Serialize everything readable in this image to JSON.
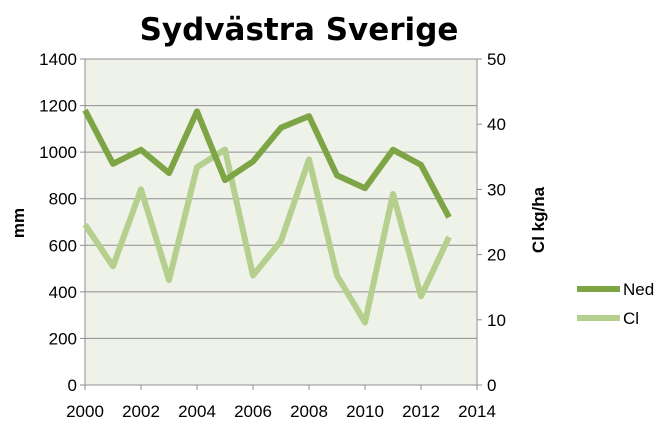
{
  "chart_data": {
    "type": "line",
    "title": "Sydvästra Sverige",
    "xlabel": "",
    "ylabel": "mm",
    "y2label": "Cl kg/ha",
    "x": [
      2000,
      2001,
      2002,
      2003,
      2004,
      2005,
      2006,
      2007,
      2008,
      2009,
      2010,
      2011,
      2012,
      2013
    ],
    "xlim": [
      2000,
      2014
    ],
    "xticks": [
      2000,
      2002,
      2004,
      2006,
      2008,
      2010,
      2012,
      2014
    ],
    "ylim": [
      0,
      1400
    ],
    "yticks": [
      0,
      200,
      400,
      600,
      800,
      1000,
      1200,
      1400
    ],
    "y2lim": [
      0,
      50
    ],
    "y2ticks": [
      0,
      10,
      20,
      30,
      40,
      50
    ],
    "grid": "horizontal",
    "legend": "right",
    "plot_background": "#eff2e8",
    "series": [
      {
        "name": "Ned",
        "axis": "left",
        "color": "#7ea545",
        "values": [
          1180,
          950,
          1010,
          910,
          1175,
          880,
          960,
          1105,
          1155,
          900,
          845,
          1010,
          945,
          720
        ]
      },
      {
        "name": "Cl",
        "axis": "right",
        "color": "#b4cf8e",
        "values": [
          24.6,
          18.2,
          30.0,
          16.1,
          33.4,
          36.1,
          16.8,
          22.1,
          34.6,
          16.8,
          9.6,
          29.3,
          13.6,
          22.7
        ]
      }
    ]
  }
}
